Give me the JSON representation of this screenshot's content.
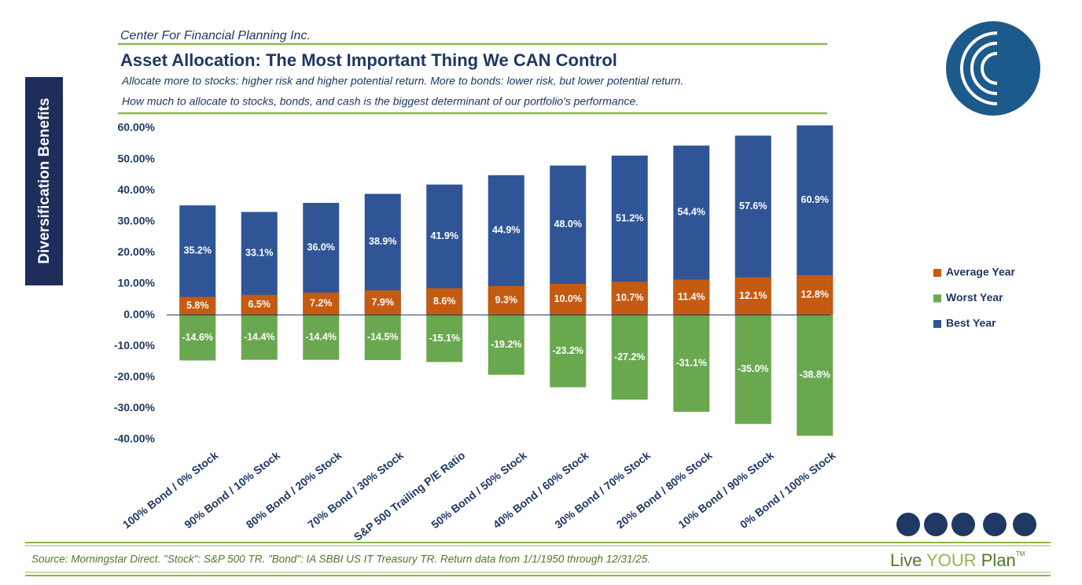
{
  "header": {
    "company": "Center For Financial Planning Inc.",
    "subtitle_1": "Allocate more to stocks: higher risk and higher potential return. More to bonds: lower risk, but lower potential return.",
    "subtitle_2": "How much to allocate to stocks, bonds, and cash is the biggest determinant of our portfolio's performance.",
    "side_label": "Diversification Benefits"
  },
  "footer": {
    "source": "Source: Morningstar Direct. \"Stock\": S&P 500 TR. \"Bond\": IA SBBI US IT Treasury TR. Return data from 1/1/1950 through 12/31/25.",
    "brand_1": "Live ",
    "brand_2": "YOUR",
    "brand_3": " Plan",
    "brand_tm": "TM"
  },
  "chart_data": {
    "type": "bar",
    "title": "Asset Allocation: The Most Important Thing We CAN Control",
    "categories": [
      "100% Bond / 0% Stock",
      "90% Bond / 10% Stock",
      "80% Bond / 20% Stock",
      "70% Bond / 30% Stock",
      "S&P 500 Trailing P/E Ratio",
      "50% Bond / 50% Stock",
      "40% Bond / 60% Stock",
      "30% Bond / 70% Stock",
      "20% Bond / 80% Stock",
      "10% Bond / 90% Stock",
      "0% Bond / 100% Stock"
    ],
    "series": [
      {
        "name": "Average Year",
        "color": "#c55a11",
        "values": [
          5.8,
          6.5,
          7.2,
          7.9,
          8.6,
          9.3,
          10.0,
          10.7,
          11.4,
          12.1,
          12.8
        ],
        "value_labels": [
          "5.8%",
          "6.5%",
          "7.2%",
          "7.9%",
          "8.6%",
          "9.3%",
          "10.0%",
          "10.7%",
          "11.4%",
          "12.1%",
          "12.8%"
        ]
      },
      {
        "name": "Worst Year",
        "color": "#6aa84f",
        "values": [
          -14.6,
          -14.4,
          -14.4,
          -14.5,
          -15.1,
          -19.2,
          -23.2,
          -27.2,
          -31.1,
          -35.0,
          -38.8
        ],
        "value_labels": [
          "-14.6%",
          "-14.4%",
          "-14.4%",
          "-14.5%",
          "-15.1%",
          "-19.2%",
          "-23.2%",
          "-27.2%",
          "-31.1%",
          "-35.0%",
          "-38.8%"
        ]
      },
      {
        "name": "Best Year",
        "color": "#2f5597",
        "values": [
          35.2,
          33.1,
          36.0,
          38.9,
          41.9,
          44.9,
          48.0,
          51.2,
          54.4,
          57.6,
          60.9
        ],
        "value_labels": [
          "35.2%",
          "33.1%",
          "36.0%",
          "38.9%",
          "41.9%",
          "44.9%",
          "48.0%",
          "51.2%",
          "54.4%",
          "57.6%",
          "60.9%"
        ]
      }
    ],
    "ylim": [
      -40,
      60
    ],
    "yticks": [
      {
        "value": -40,
        "label": "-40.00%"
      },
      {
        "value": -30,
        "label": "-30.00%"
      },
      {
        "value": -20,
        "label": "-20.00%"
      },
      {
        "value": -10,
        "label": "-10.00%"
      },
      {
        "value": 0,
        "label": "0.00%"
      },
      {
        "value": 10,
        "label": "10.00%"
      },
      {
        "value": 20,
        "label": "20.00%"
      },
      {
        "value": 30,
        "label": "30.00%"
      },
      {
        "value": 40,
        "label": "40.00%"
      },
      {
        "value": 50,
        "label": "50.00%"
      },
      {
        "value": 60,
        "label": "60.00%"
      }
    ],
    "grid": false,
    "legend": "right"
  }
}
